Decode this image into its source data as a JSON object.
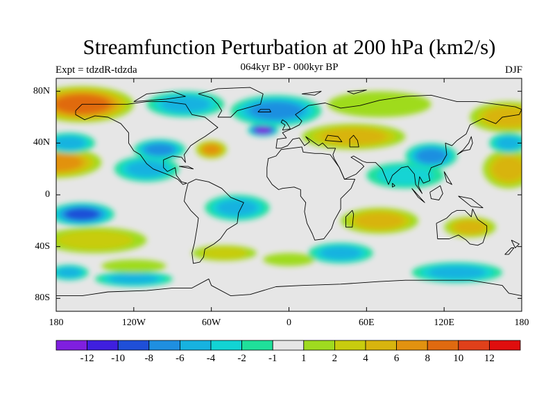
{
  "figure": {
    "title": "Streamfunction Perturbation at 200 hPa (km2/s)",
    "subtitle": "064kyr BP - 000kyr BP",
    "left_label": "Expt = tdzdR-tdzda",
    "right_label": "DJF"
  },
  "axes": {
    "lat_ticks": [
      {
        "value": 80,
        "label": "80N"
      },
      {
        "value": 40,
        "label": "40N"
      },
      {
        "value": 0,
        "label": "0"
      },
      {
        "value": -40,
        "label": "40S"
      },
      {
        "value": -80,
        "label": "80S"
      }
    ],
    "lon_ticks": [
      {
        "value": -180,
        "label": "180"
      },
      {
        "value": -120,
        "label": "120W"
      },
      {
        "value": -60,
        "label": "60W"
      },
      {
        "value": 0,
        "label": "0"
      },
      {
        "value": 60,
        "label": "60E"
      },
      {
        "value": 120,
        "label": "120E"
      },
      {
        "value": 180,
        "label": "180"
      }
    ],
    "lon_range": [
      -180,
      180
    ],
    "lat_range": [
      -90,
      90
    ]
  },
  "colorbar": {
    "colors": [
      "#7f1fdf",
      "#3f1fdf",
      "#1f4fd8",
      "#1f8fe0",
      "#17b2e0",
      "#12d4d4",
      "#1fe09a",
      "#e6e6e6",
      "#9fdb1f",
      "#c8cc0e",
      "#d8b40e",
      "#e29210",
      "#e06a10",
      "#e0401a",
      "#e00e0e"
    ],
    "labels": [
      "-12",
      "-10",
      "-8",
      "-6",
      "-4",
      "-2",
      "-1",
      "1",
      "2",
      "4",
      "6",
      "8",
      "10",
      "12"
    ]
  },
  "map": {
    "background_color": "#e6e6e6",
    "anomalies": [
      {
        "lon": -160,
        "lat": 70,
        "level": 10,
        "rx": 40,
        "ry": 14
      },
      {
        "lon": -180,
        "lat": 25,
        "level": 8,
        "rx": 35,
        "ry": 12
      },
      {
        "lon": -170,
        "lat": 40,
        "level": -4,
        "rx": 20,
        "ry": 8
      },
      {
        "lon": -160,
        "lat": -15,
        "level": -8,
        "rx": 25,
        "ry": 9
      },
      {
        "lon": -150,
        "lat": -35,
        "level": 4,
        "rx": 40,
        "ry": 10
      },
      {
        "lon": -110,
        "lat": 20,
        "level": -4,
        "rx": 25,
        "ry": 10
      },
      {
        "lon": -100,
        "lat": 35,
        "level": -6,
        "rx": 20,
        "ry": 8
      },
      {
        "lon": -60,
        "lat": 35,
        "level": 8,
        "rx": 12,
        "ry": 7
      },
      {
        "lon": -80,
        "lat": 70,
        "level": -4,
        "rx": 30,
        "ry": 10
      },
      {
        "lon": -20,
        "lat": 50,
        "level": -12,
        "rx": 12,
        "ry": 5
      },
      {
        "lon": -10,
        "lat": 65,
        "level": -6,
        "rx": 35,
        "ry": 12
      },
      {
        "lon": 50,
        "lat": 45,
        "level": 6,
        "rx": 40,
        "ry": 10
      },
      {
        "lon": 70,
        "lat": 70,
        "level": 2,
        "rx": 40,
        "ry": 10
      },
      {
        "lon": 90,
        "lat": 15,
        "level": -2,
        "rx": 30,
        "ry": 10
      },
      {
        "lon": 110,
        "lat": 30,
        "level": -6,
        "rx": 20,
        "ry": 10
      },
      {
        "lon": 170,
        "lat": 60,
        "level": 6,
        "rx": 30,
        "ry": 12
      },
      {
        "lon": 170,
        "lat": 20,
        "level": 6,
        "rx": 20,
        "ry": 15
      },
      {
        "lon": 170,
        "lat": 40,
        "level": -4,
        "rx": 15,
        "ry": 8
      },
      {
        "lon": -40,
        "lat": -10,
        "level": -4,
        "rx": 25,
        "ry": 10
      },
      {
        "lon": -50,
        "lat": -45,
        "level": 4,
        "rx": 25,
        "ry": 6
      },
      {
        "lon": 0,
        "lat": -50,
        "level": 2,
        "rx": 20,
        "ry": 5
      },
      {
        "lon": 40,
        "lat": -45,
        "level": -4,
        "rx": 25,
        "ry": 8
      },
      {
        "lon": 70,
        "lat": -20,
        "level": 6,
        "rx": 30,
        "ry": 10
      },
      {
        "lon": 140,
        "lat": -25,
        "level": 6,
        "rx": 20,
        "ry": 8
      },
      {
        "lon": 130,
        "lat": -60,
        "level": -4,
        "rx": 35,
        "ry": 8
      },
      {
        "lon": -170,
        "lat": -60,
        "level": -4,
        "rx": 15,
        "ry": 6
      },
      {
        "lon": -120,
        "lat": -65,
        "level": -4,
        "rx": 30,
        "ry": 6
      },
      {
        "lon": -120,
        "lat": -55,
        "level": 2,
        "rx": 25,
        "ry": 5
      }
    ]
  }
}
